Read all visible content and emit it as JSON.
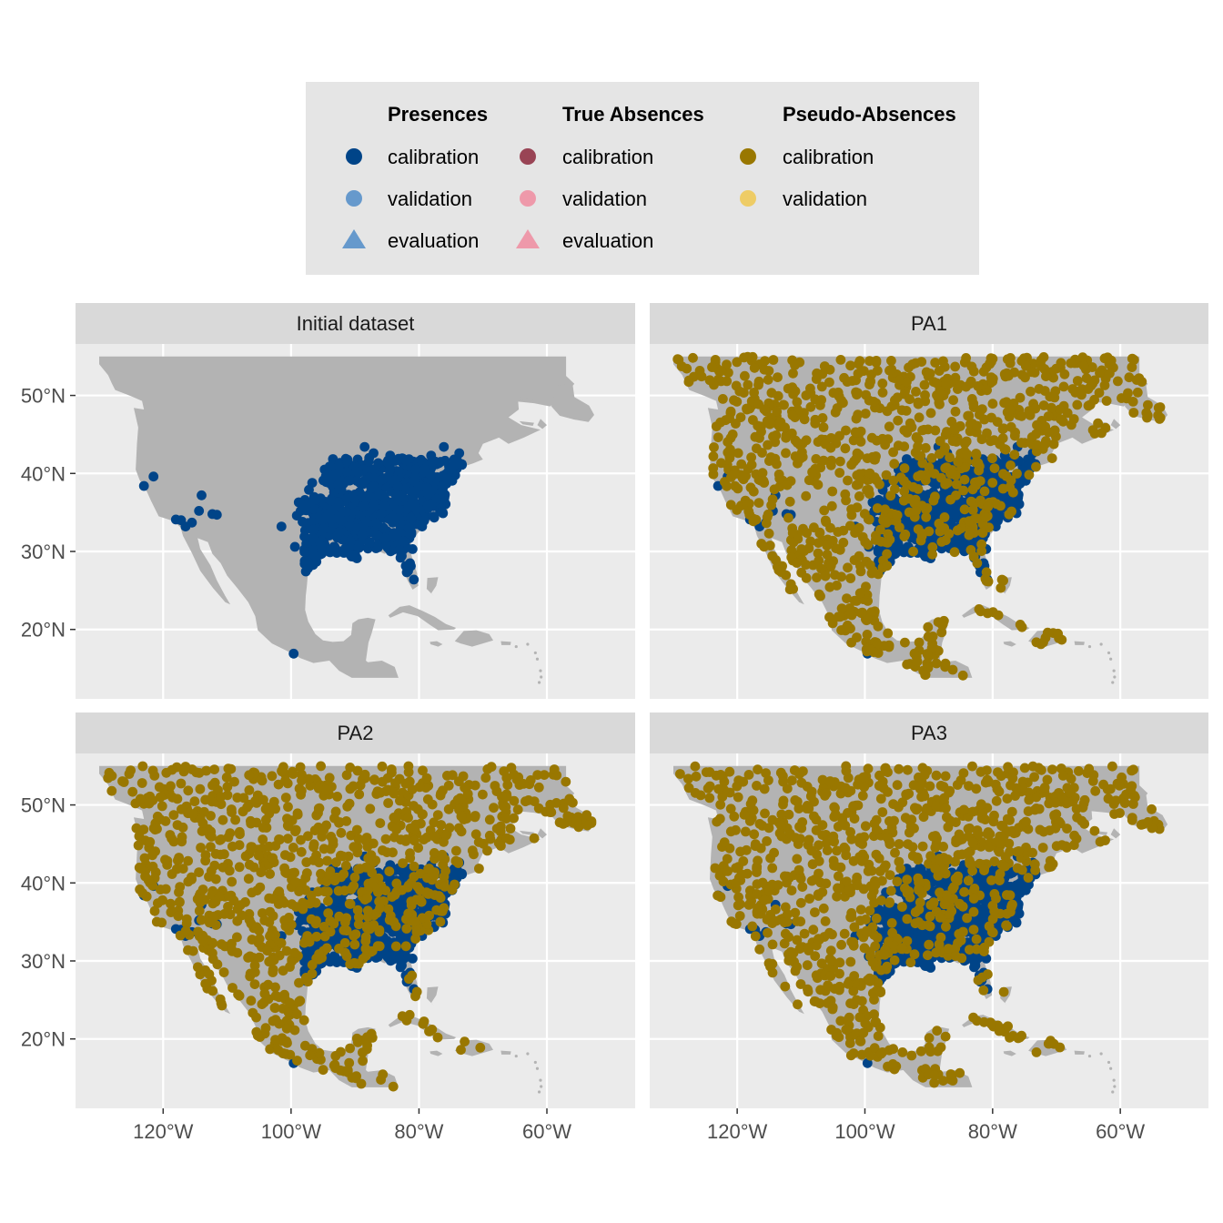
{
  "legend": {
    "groups": [
      {
        "title": "Presences",
        "items": [
          {
            "label": "calibration",
            "shape": "circle",
            "color": "#004488"
          },
          {
            "label": "validation",
            "shape": "circle",
            "color": "#6699CC"
          },
          {
            "label": "evaluation",
            "shape": "triangle",
            "color": "#6699CC"
          }
        ]
      },
      {
        "title": "True Absences",
        "items": [
          {
            "label": "calibration",
            "shape": "circle",
            "color": "#994455"
          },
          {
            "label": "validation",
            "shape": "circle",
            "color": "#EE99AA"
          },
          {
            "label": "evaluation",
            "shape": "triangle",
            "color": "#EE99AA"
          }
        ]
      },
      {
        "title": "Pseudo-Absences",
        "items": [
          {
            "label": "calibration",
            "shape": "circle",
            "color": "#997700"
          },
          {
            "label": "validation",
            "shape": "circle",
            "color": "#EECC66"
          }
        ]
      }
    ]
  },
  "colors": {
    "panel_bg": "#EBEBEB",
    "strip_bg": "#D9D9D9",
    "land": "#B3B3B3",
    "grid": "#FFFFFF",
    "legend_bg": "#E5E5E5",
    "presence": "#004488",
    "pseudo_absence": "#997700"
  },
  "chart_data": {
    "type": "scatter",
    "subtype": "faceted map",
    "x_ticks": [
      {
        "value": -120,
        "label": "120°W"
      },
      {
        "value": -100,
        "label": "100°W"
      },
      {
        "value": -80,
        "label": "80°W"
      },
      {
        "value": -60,
        "label": "60°W"
      }
    ],
    "y_ticks": [
      {
        "value": 20,
        "label": "20°N"
      },
      {
        "value": 30,
        "label": "30°N"
      },
      {
        "value": 40,
        "label": "40°N"
      },
      {
        "value": 50,
        "label": "50°N"
      }
    ],
    "xlim": [
      -133.7,
      -46.2
    ],
    "ylim": [
      11.1,
      56.6
    ],
    "grid": true,
    "legend_position": "top",
    "facets": [
      {
        "label": "Initial dataset",
        "series": [
          "Presences calibration"
        ]
      },
      {
        "label": "PA1",
        "series": [
          "Presences calibration",
          "Pseudo-Absences calibration"
        ]
      },
      {
        "label": "PA2",
        "series": [
          "Presences calibration",
          "Pseudo-Absences calibration"
        ]
      },
      {
        "label": "PA3",
        "series": [
          "Presences calibration",
          "Pseudo-Absences calibration"
        ]
      }
    ],
    "presence_points": [
      [
        -123,
        38.4
      ],
      [
        -121.5,
        39.6
      ],
      [
        -118,
        34.1
      ],
      [
        -117.2,
        34
      ],
      [
        -116.5,
        33.2
      ],
      [
        -115.5,
        33.7
      ],
      [
        -114.4,
        35.2
      ],
      [
        -114,
        37.2
      ],
      [
        -112.3,
        34.8
      ],
      [
        -111.6,
        34.7
      ],
      [
        -101.5,
        33.2
      ],
      [
        -99.1,
        34.6
      ],
      [
        -98.8,
        36.3
      ],
      [
        -98.5,
        35.2
      ],
      [
        -97.8,
        32.7
      ],
      [
        -97,
        30.4
      ],
      [
        -96.7,
        38.8
      ],
      [
        -96.4,
        34.4
      ],
      [
        -95.9,
        36.7
      ],
      [
        -95.3,
        30.3
      ],
      [
        -94.9,
        34.9
      ],
      [
        -94.5,
        38.9
      ],
      [
        -94.1,
        32.4
      ],
      [
        -93.6,
        36.8
      ],
      [
        -93.2,
        30.6
      ],
      [
        -92.8,
        35.1
      ],
      [
        -92.4,
        38.3
      ],
      [
        -92,
        33.3
      ],
      [
        -91.6,
        31.5
      ],
      [
        -91.2,
        36.4
      ],
      [
        -90.8,
        39.1
      ],
      [
        -90.4,
        34.5
      ],
      [
        -90.1,
        30.5
      ],
      [
        -89.7,
        32.9
      ],
      [
        -89.3,
        37.6
      ],
      [
        -88.9,
        35.8
      ],
      [
        -88.5,
        43.4
      ],
      [
        -88.1,
        39.9
      ],
      [
        -87.7,
        31.2
      ],
      [
        -87.3,
        34.2
      ],
      [
        -86.9,
        36.9
      ],
      [
        -86.5,
        40.6
      ],
      [
        -86.1,
        32.5
      ],
      [
        -85.7,
        38.3
      ],
      [
        -85.3,
        35.2
      ],
      [
        -84.9,
        30.5
      ],
      [
        -84.5,
        42.3
      ],
      [
        -84.1,
        33.7
      ],
      [
        -83.7,
        37.5
      ],
      [
        -83.3,
        40.1
      ],
      [
        -82.9,
        29.2
      ],
      [
        -82.5,
        32
      ],
      [
        -82.1,
        35.6
      ],
      [
        -81.7,
        27.5
      ],
      [
        -81.4,
        38.8
      ],
      [
        -81,
        30.3
      ],
      [
        -80.8,
        26.4
      ],
      [
        -80.5,
        33.5
      ],
      [
        -80.1,
        41.5
      ],
      [
        -79.7,
        36.2
      ],
      [
        -79.3,
        39.4
      ],
      [
        -78.9,
        34.5
      ],
      [
        -78.5,
        37.8
      ],
      [
        -78.1,
        42.3
      ],
      [
        -77.7,
        35.9
      ],
      [
        -77.3,
        39.2
      ],
      [
        -76.9,
        41.3
      ],
      [
        -76.5,
        37.4
      ],
      [
        -76.1,
        43.4
      ],
      [
        -75.7,
        38.7
      ],
      [
        -75.3,
        40.9
      ],
      [
        -74.9,
        39.6
      ],
      [
        -74.5,
        41.8
      ],
      [
        -74.1,
        40.6
      ],
      [
        -73.7,
        42.6
      ],
      [
        -73.3,
        41.2
      ],
      [
        -92.7,
        40.9
      ],
      [
        -89.6,
        41.8
      ],
      [
        -87.1,
        42.6
      ],
      [
        -97.2,
        37.9
      ],
      [
        -95.6,
        32.2
      ],
      [
        -93.9,
        29.9
      ],
      [
        -96.2,
        31.1
      ],
      [
        -98.2,
        33.8
      ],
      [
        -99.4,
        30.6
      ],
      [
        -88.2,
        33.5
      ],
      [
        -85.9,
        34.6
      ],
      [
        -83.2,
        35.1
      ],
      [
        -84.5,
        36.3
      ],
      [
        -86.2,
        37.6
      ],
      [
        -81.8,
        36.7
      ],
      [
        -80.6,
        35.4
      ],
      [
        -82.4,
        34.1
      ],
      [
        -79.5,
        33.2
      ],
      [
        -88.4,
        31.5
      ],
      [
        -90.3,
        36.6
      ],
      [
        -91.8,
        38.7
      ],
      [
        -89.9,
        39.7
      ],
      [
        -87.5,
        38.4
      ],
      [
        -85.2,
        39.4
      ],
      [
        -83.5,
        38.9
      ],
      [
        -82.2,
        40.4
      ],
      [
        -80.4,
        39.9
      ],
      [
        -78.2,
        40.5
      ],
      [
        -77.6,
        38.3
      ],
      [
        -93.1,
        34.2
      ],
      [
        -94.8,
        36.4
      ],
      [
        -96.1,
        35.6
      ],
      [
        -97.9,
        31.9
      ],
      [
        -95.1,
        33.6
      ],
      [
        -86.4,
        33.3
      ],
      [
        -84.3,
        31.6
      ],
      [
        -83,
        33.6
      ],
      [
        -81.2,
        32.2
      ],
      [
        -99.6,
        16.9
      ],
      [
        -79.4,
        37.1
      ],
      [
        -77.1,
        36.5
      ],
      [
        -76.6,
        35.5
      ],
      [
        -85.5,
        32.1
      ],
      [
        -87.9,
        36.3
      ]
    ],
    "pseudo_absence_region": {
      "x": [
        -130,
        -53
      ],
      "y": [
        13,
        55
      ]
    }
  }
}
